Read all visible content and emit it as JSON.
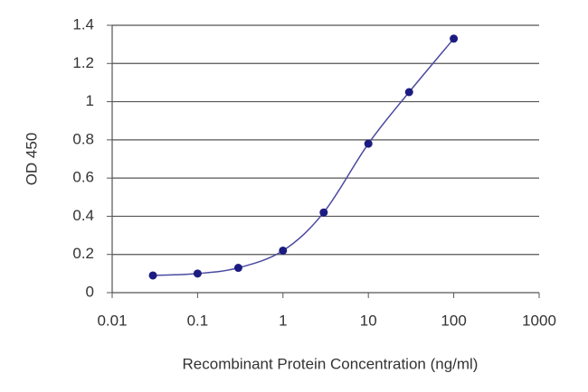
{
  "chart_data": {
    "type": "line",
    "x_label": "Recombinant Protein Concentration (ng/ml)",
    "y_label": "OD 450",
    "x": [
      0.03,
      0.1,
      0.3,
      1,
      3,
      10,
      30,
      100
    ],
    "series": [
      {
        "color": "#1c1c80",
        "values": [
          0.09,
          0.1,
          0.13,
          0.22,
          0.42,
          0.78,
          1.05,
          1.33
        ]
      }
    ],
    "xlim": [
      0.01,
      1000
    ],
    "xticks": [
      0.01,
      0.1,
      1,
      10,
      100,
      1000
    ],
    "x_log": true,
    "ylim": [
      0,
      1.4
    ],
    "yticks": [
      0,
      0.2,
      0.4,
      0.6,
      0.8,
      1,
      1.2,
      1.4
    ],
    "grid": true,
    "markers": true
  }
}
